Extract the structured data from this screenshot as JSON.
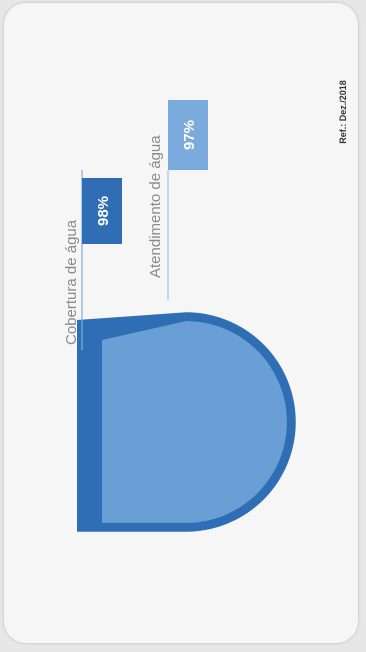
{
  "chart_data": {
    "type": "pie",
    "title": "",
    "reference": "Ref.: Dez./2018",
    "series": [
      {
        "name": "Cobertura de água",
        "value": 98,
        "value_label": "98%",
        "color": "#2f6eb5"
      },
      {
        "name": "Atendimento de água",
        "value": 97,
        "value_label": "97%",
        "color": "#6a9fd6"
      }
    ]
  }
}
